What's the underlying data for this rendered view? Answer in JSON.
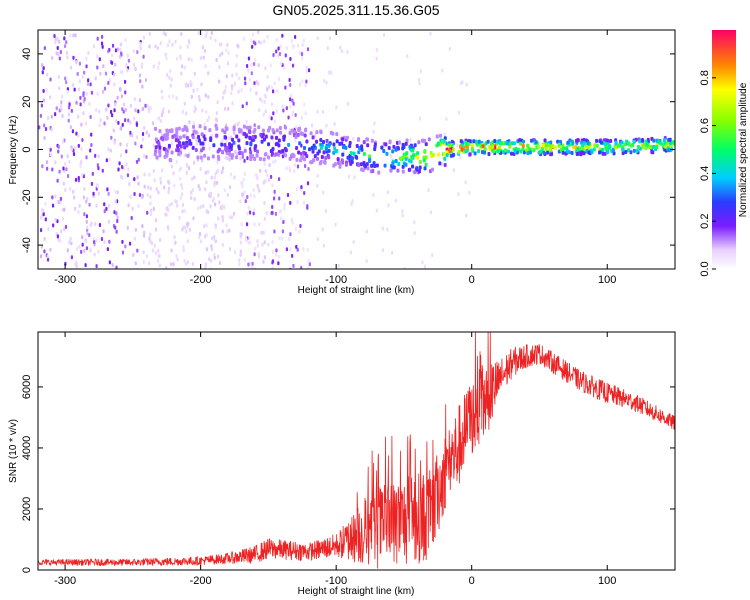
{
  "title": "GN05.2025.311.15.36.G05",
  "chart_data": [
    {
      "type": "heatmap",
      "name": "spectrogram",
      "xlabel": "Height of straight line (km)",
      "ylabel": "Frequency (Hz)",
      "xlim": [
        -320,
        150
      ],
      "ylim": [
        -50,
        50
      ],
      "x_ticks": [
        -300,
        -200,
        -100,
        0,
        100
      ],
      "y_ticks": [
        -40,
        -20,
        0,
        20,
        40
      ],
      "colorbar": {
        "label": "Normalized spectral amplitude",
        "range": [
          0,
          1
        ],
        "ticks": [
          "0.0",
          "0.2",
          "0.4",
          "0.6",
          "0.8"
        ],
        "tick_values": [
          0,
          0.2,
          0.4,
          0.6,
          0.8
        ]
      },
      "ridge": {
        "x": [
          -235,
          -200,
          -165,
          -130,
          -100,
          -75,
          -50,
          -35,
          -20,
          0,
          50,
          100,
          150
        ],
        "frequency": [
          2,
          3,
          3,
          2,
          0,
          -3,
          -3,
          -3,
          0,
          1,
          1,
          1,
          2
        ],
        "amplitude": [
          0.2,
          0.25,
          0.3,
          0.3,
          0.4,
          0.5,
          0.6,
          0.75,
          0.95,
          0.9,
          0.8,
          0.7,
          0.7
        ]
      }
    },
    {
      "type": "line",
      "name": "snr",
      "xlabel": "Height of straight line (km)",
      "ylabel": "SNR (10 * v/v)",
      "xlim": [
        -320,
        150
      ],
      "ylim": [
        0,
        7800
      ],
      "x_ticks": [
        -300,
        -200,
        -100,
        0,
        100
      ],
      "y_ticks": [
        0,
        2000,
        4000,
        6000
      ],
      "color": "#ee2222",
      "envelope": {
        "x": [
          -320,
          -250,
          -200,
          -180,
          -160,
          -150,
          -120,
          -100,
          -85,
          -70,
          -60,
          -50,
          -40,
          -30,
          -20,
          -10,
          0,
          10,
          20,
          30,
          40,
          50,
          60,
          70,
          80,
          100,
          120,
          150
        ],
        "mean": [
          250,
          250,
          300,
          380,
          500,
          700,
          600,
          800,
          1100,
          1400,
          1500,
          1600,
          1700,
          1800,
          3200,
          4000,
          5000,
          5500,
          6200,
          6800,
          7000,
          7100,
          6800,
          6500,
          6200,
          5800,
          5500,
          4800
        ],
        "spread": [
          100,
          120,
          150,
          180,
          300,
          350,
          300,
          400,
          900,
          1400,
          1400,
          1500,
          1500,
          1500,
          1300,
          1400,
          1300,
          1300,
          700,
          500,
          400,
          350,
          350,
          350,
          350,
          350,
          300,
          250
        ]
      }
    }
  ]
}
